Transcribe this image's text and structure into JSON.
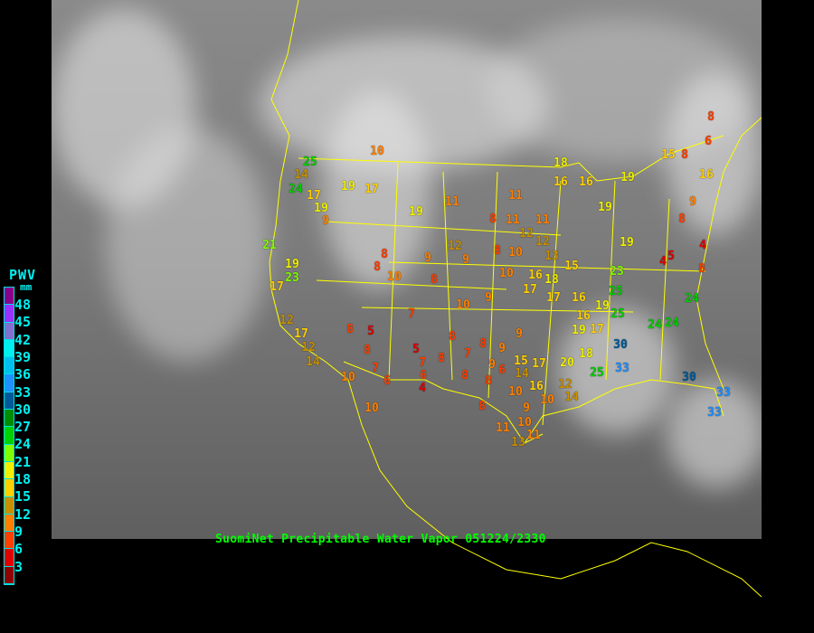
{
  "map": {
    "title": "SuomiNet Precipitable Water Vapor 051224/2330",
    "basemap": "GOES infrared satellite imagery, North America",
    "boundary_color": "#ffff00",
    "title_color": "#00ff00"
  },
  "legend": {
    "title": "PWV",
    "unit": "mm",
    "text_color": "#00f0f0",
    "ticks": [
      "48",
      "45",
      "42",
      "39",
      "36",
      "33",
      "30",
      "27",
      "24",
      "21",
      "18",
      "15",
      "12",
      "9",
      "6",
      "3"
    ],
    "colors": [
      "#8b008b",
      "#9932ff",
      "#8070d0",
      "#00f0f0",
      "#00c0f0",
      "#1e90ff",
      "#005a9a",
      "#008c00",
      "#00d000",
      "#80ff00",
      "#f0f000",
      "#ffd000",
      "#c89000",
      "#ff8000",
      "#ff4000",
      "#e00000",
      "#900000"
    ]
  },
  "stations": [
    25,
    14,
    24,
    17,
    19,
    19,
    17,
    10,
    9,
    21,
    19,
    23,
    17,
    12,
    17,
    12,
    14,
    19,
    8,
    8,
    10,
    9,
    8,
    11,
    12,
    9,
    8,
    8,
    11,
    11,
    12,
    11,
    10,
    12,
    16,
    10,
    9,
    10,
    7,
    5,
    8,
    8,
    5,
    7,
    8,
    8,
    7,
    8,
    9,
    7,
    6,
    6,
    4,
    8,
    9,
    8,
    10,
    10,
    10,
    8,
    9,
    11,
    10,
    13,
    15,
    17,
    14,
    16,
    11,
    10,
    12,
    20,
    14,
    25,
    33,
    30,
    33,
    33,
    30,
    24,
    24,
    25,
    25,
    23,
    24,
    19,
    19,
    19,
    19,
    15,
    8,
    16,
    8,
    6,
    9,
    8,
    4,
    5,
    4,
    8,
    18,
    17,
    16,
    16,
    13,
    17,
    18,
    15,
    16,
    16,
    19,
    17,
    18,
    9,
    6
  ]
}
